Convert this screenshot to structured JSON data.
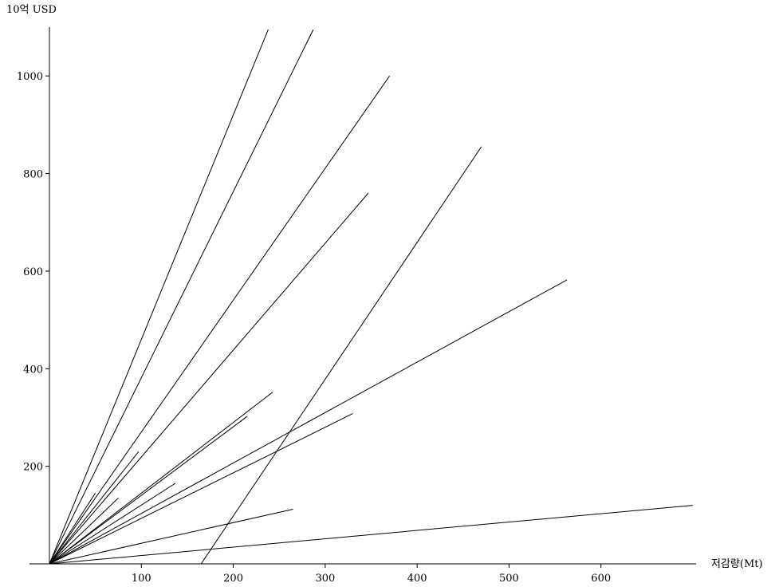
{
  "chart_data": {
    "type": "line",
    "title": "",
    "ylabel": "10억 USD",
    "xlabel": "저감량(Mt)",
    "xlim": [
      0,
      700
    ],
    "ylim": [
      0,
      1100
    ],
    "x_ticks": [
      100,
      200,
      300,
      400,
      500,
      600
    ],
    "y_ticks": [
      200,
      400,
      600,
      800,
      1000
    ],
    "grid": false,
    "legend": "none",
    "line_color": "#000000",
    "series": [
      {
        "points": [
          [
            0,
            0
          ],
          [
            238,
            1095
          ]
        ]
      },
      {
        "points": [
          [
            0,
            0
          ],
          [
            287,
            1095
          ]
        ]
      },
      {
        "points": [
          [
            0,
            0
          ],
          [
            370,
            1000
          ]
        ]
      },
      {
        "points": [
          [
            0,
            0
          ],
          [
            347,
            760
          ]
        ]
      },
      {
        "points": [
          [
            165,
            0
          ],
          [
            470,
            855
          ]
        ]
      },
      {
        "points": [
          [
            0,
            0
          ],
          [
            563,
            582
          ]
        ]
      },
      {
        "points": [
          [
            0,
            0
          ],
          [
            330,
            308
          ]
        ]
      },
      {
        "points": [
          [
            0,
            0
          ],
          [
            243,
            352
          ]
        ]
      },
      {
        "points": [
          [
            0,
            0
          ],
          [
            215,
            302
          ]
        ]
      },
      {
        "points": [
          [
            0,
            0
          ],
          [
            265,
            112
          ]
        ]
      },
      {
        "points": [
          [
            0,
            0
          ],
          [
            700,
            120
          ]
        ]
      },
      {
        "points": [
          [
            0,
            0
          ],
          [
            97,
            230
          ]
        ]
      },
      {
        "points": [
          [
            0,
            0
          ],
          [
            50,
            145
          ]
        ]
      },
      {
        "points": [
          [
            0,
            0
          ],
          [
            75,
            135
          ]
        ]
      },
      {
        "points": [
          [
            0,
            0
          ],
          [
            137,
            165
          ]
        ]
      },
      {
        "points": [
          [
            0,
            0
          ],
          [
            155,
            0
          ]
        ]
      }
    ]
  }
}
